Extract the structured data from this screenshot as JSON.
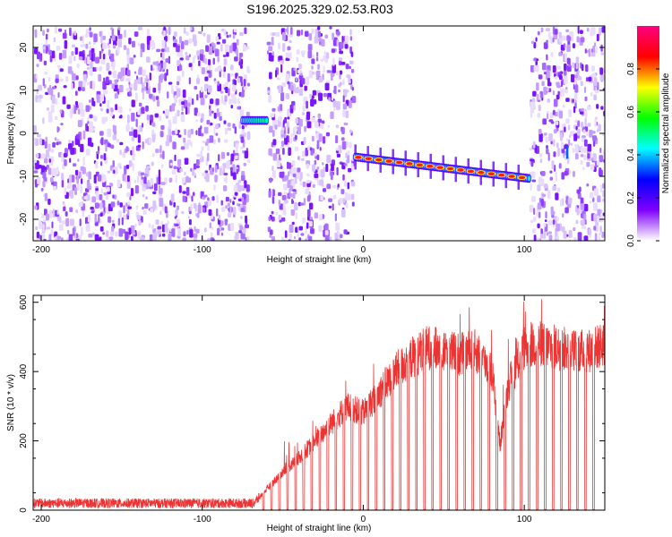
{
  "title": "S196.2025.329.02.53.R03",
  "chart_data": [
    {
      "type": "heatmap",
      "xlabel": "Height of straight line (km)",
      "ylabel": "Frequency (Hz)",
      "xlim": [
        -205,
        150
      ],
      "ylim": [
        -25,
        25
      ],
      "xticks": [
        -200,
        -100,
        0,
        100
      ],
      "yticks": [
        -20,
        -10,
        0,
        10,
        20
      ],
      "colorbar": {
        "label": "Normalized spectral amplitude",
        "range": [
          0.0,
          1.0
        ],
        "ticks": [
          0.0,
          0.2,
          0.4,
          0.6,
          0.8
        ],
        "colors": [
          "#ffffff",
          "#8000ff",
          "#0000ff",
          "#00ffff",
          "#00ff00",
          "#ffff00",
          "#ff0000",
          "#ff0080"
        ]
      },
      "noise_regions_x": [
        [
          -205,
          -72
        ],
        [
          -60,
          -7
        ],
        [
          103,
          150
        ]
      ],
      "gap_regions_x": [
        [
          -72,
          -60
        ],
        [
          -7,
          103
        ]
      ],
      "signals": [
        {
          "x": [
            -75,
            -60
          ],
          "y": [
            3,
            3
          ],
          "peak_amplitude": 0.4
        },
        {
          "x": [
            -5,
            103
          ],
          "y": [
            -5.5,
            -10.5
          ],
          "peak_amplitude": 0.9
        }
      ],
      "grid": false
    },
    {
      "type": "line",
      "xlabel": "Height of straight line (km)",
      "ylabel": "SNR (10 * v/v)",
      "xlim": [
        -205,
        150
      ],
      "ylim": [
        0,
        620
      ],
      "xticks": [
        -200,
        -100,
        0,
        100
      ],
      "yticks": [
        0,
        200,
        400,
        600
      ],
      "color": "#ee3333",
      "envelope": {
        "x": [
          -205,
          -140,
          -68,
          -60,
          -50,
          -40,
          -30,
          -20,
          -10,
          0,
          10,
          20,
          30,
          40,
          60,
          70,
          80,
          85,
          90,
          100,
          110,
          120,
          130,
          140,
          150
        ],
        "y": [
          20,
          20,
          20,
          60,
          110,
          150,
          200,
          250,
          300,
          280,
          340,
          400,
          440,
          470,
          450,
          460,
          400,
          190,
          360,
          470,
          480,
          470,
          460,
          460,
          480
        ]
      },
      "dropouts_x": [
        -62,
        -57,
        -52,
        -47,
        -42,
        -37,
        -32,
        -27,
        -22,
        -17,
        -12,
        -7,
        -2,
        3,
        8,
        13,
        18,
        23,
        28,
        33,
        38,
        43,
        48,
        53,
        58,
        63,
        68,
        73,
        78,
        83,
        88,
        93,
        98,
        103,
        108,
        113,
        118,
        123,
        128,
        133,
        138,
        143
      ],
      "grid": false
    }
  ]
}
